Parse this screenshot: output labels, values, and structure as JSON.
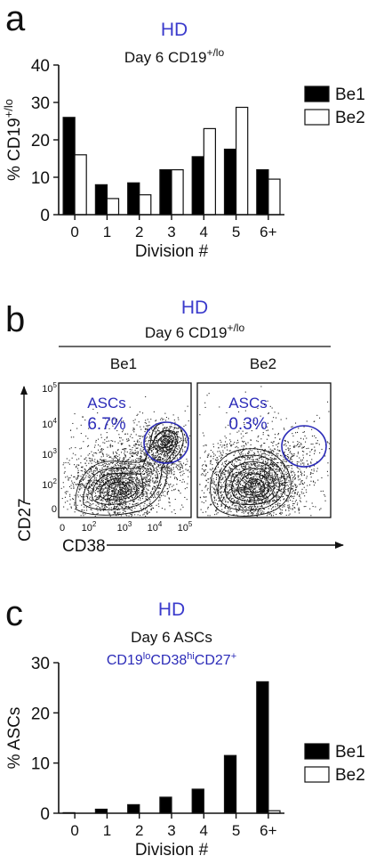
{
  "colors": {
    "bar_filled": "#000000",
    "bar_open": "#ffffff",
    "hd_title": "#3a3acc",
    "gate": "#2b2bb8",
    "text": "#111111"
  },
  "panel_a": {
    "letter": "a",
    "title": "HD",
    "subtitle_main": "Day 6 CD19",
    "subtitle_sup": "+/lo"
  },
  "panel_b": {
    "letter": "b",
    "title": "HD",
    "subtitle_main": "Day 6 CD19",
    "subtitle_sup": "+/lo",
    "plots": [
      {
        "label": "Be1",
        "gate_label": "ASCs",
        "gate_value": "6.7%"
      },
      {
        "label": "Be2",
        "gate_label": "ASCs",
        "gate_value": "0.3%"
      }
    ],
    "y_axis_label": "CD27",
    "x_axis_label": "CD38",
    "y_ticks": [
      {
        "base": "10",
        "exp": "5"
      },
      {
        "base": "10",
        "exp": "4"
      },
      {
        "base": "10",
        "exp": "3"
      },
      {
        "base": "10",
        "exp": "2"
      },
      {
        "base": "0",
        "exp": ""
      }
    ],
    "x_ticks": [
      {
        "base": "0",
        "exp": ""
      },
      {
        "base": "10",
        "exp": "2"
      },
      {
        "base": "10",
        "exp": "3"
      },
      {
        "base": "10",
        "exp": "4"
      },
      {
        "base": "10",
        "exp": "5"
      }
    ]
  },
  "panel_c": {
    "letter": "c",
    "title": "HD",
    "subtitle": "Day 6 ASCs",
    "population": [
      {
        "t": "CD19",
        "sup": false
      },
      {
        "t": "lo",
        "sup": true
      },
      {
        "t": "CD38",
        "sup": false
      },
      {
        "t": "hi",
        "sup": true
      },
      {
        "t": "CD27",
        "sup": false
      },
      {
        "t": "+",
        "sup": true
      }
    ]
  },
  "chart_data": [
    {
      "type": "bar",
      "title": "HD",
      "xlabel": "Division #",
      "ylabel": "% CD19+/lo",
      "ylim": [
        0,
        40
      ],
      "yticks": [
        "0",
        "10",
        "20",
        "30",
        "40"
      ],
      "categories": [
        "0",
        "1",
        "2",
        "3",
        "4",
        "5",
        "6+"
      ],
      "legend_position": "top-right",
      "series": [
        {
          "name": "Be1",
          "fill": "filled",
          "values": [
            26,
            8,
            8.5,
            12,
            15.5,
            17.5,
            12
          ]
        },
        {
          "name": "Be2",
          "fill": "open",
          "values": [
            16,
            4.3,
            5.3,
            12,
            23,
            28.7,
            9.5
          ]
        }
      ]
    },
    {
      "type": "bar",
      "title": "HD",
      "xlabel": "Division #",
      "ylabel": "% ASCs",
      "ylim": [
        0,
        30
      ],
      "yticks": [
        "0",
        "10",
        "20",
        "30"
      ],
      "categories": [
        "0",
        "1",
        "2",
        "3",
        "4",
        "5",
        "6+"
      ],
      "legend_position": "top-right",
      "series": [
        {
          "name": "Be1",
          "fill": "filled",
          "values": [
            0.1,
            0.8,
            1.7,
            3.2,
            4.8,
            11.5,
            26.2
          ]
        },
        {
          "name": "Be2",
          "fill": "open",
          "values": [
            0,
            0,
            0,
            0,
            0,
            0,
            0.5
          ]
        }
      ]
    }
  ]
}
